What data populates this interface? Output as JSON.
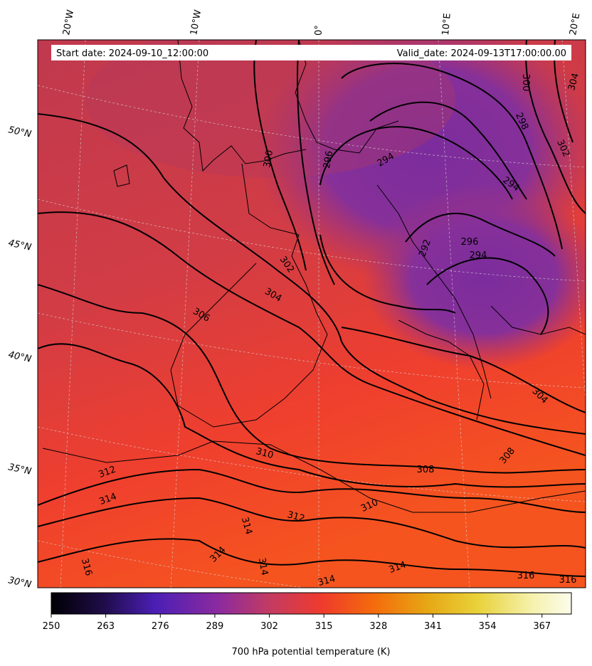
{
  "map": {
    "start_label": "Start date: 2024-09-10_12:00:00",
    "valid_label": "Valid_date: 2024-09-13T17:00:00.00",
    "lon_labels": [
      "20°W",
      "10°W",
      "0°",
      "10°E",
      "20°E"
    ],
    "lat_labels": [
      "50°N",
      "45°N",
      "40°N",
      "35°N",
      "30°N"
    ],
    "contour_labels": [
      "294",
      "294",
      "292",
      "296",
      "294",
      "296",
      "298",
      "300",
      "302",
      "304",
      "304",
      "302",
      "300",
      "306",
      "304",
      "308",
      "308",
      "310",
      "312",
      "314",
      "310",
      "312",
      "314",
      "314",
      "314",
      "314",
      "314",
      "316",
      "316",
      "316"
    ],
    "colors": {
      "cold": "#7a2d9a",
      "mid": "#c0394e",
      "warm": "#f2462c",
      "warmest": "#f5561e",
      "contour": "#000000",
      "grid": "#d9d9d9"
    }
  },
  "colorbar": {
    "ticks": [
      "250",
      "263",
      "276",
      "289",
      "302",
      "315",
      "328",
      "341",
      "354",
      "367"
    ],
    "label": "700 hPa potential temperature (K)",
    "range": [
      250,
      374
    ],
    "stops": [
      "#000004",
      "#1f0c48",
      "#4b1fb5",
      "#8b2aa0",
      "#c33b62",
      "#ef3b2c",
      "#f46b0c",
      "#e7a514",
      "#e8d23a",
      "#f5f0a8",
      "#fcfcec"
    ]
  }
}
